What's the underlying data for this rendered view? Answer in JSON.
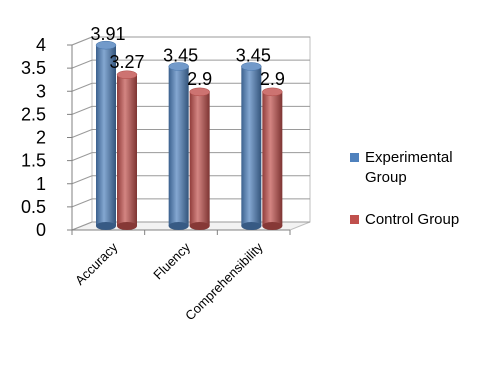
{
  "chart_data": {
    "type": "bar",
    "categories": [
      "Accuracy",
      "Fluency",
      "Comprehensibility"
    ],
    "series": [
      {
        "name": "Experimental Group",
        "values": [
          3.91,
          3.45,
          3.45
        ],
        "color": "#4F81BD"
      },
      {
        "name": "Control Group",
        "values": [
          3.27,
          2.9,
          2.9
        ],
        "color": "#C0504D"
      }
    ],
    "data_labels": [
      [
        "3.91",
        "3.45",
        "3.45"
      ],
      [
        "3.27",
        "2.9",
        "2.9"
      ]
    ],
    "yticks": [
      "0",
      "0.5",
      "1",
      "1.5",
      "2",
      "2.5",
      "3",
      "3.5",
      "4"
    ],
    "ylim": [
      0,
      4
    ],
    "grid": true,
    "legend_position": "right",
    "style": "3d-cylinder"
  }
}
